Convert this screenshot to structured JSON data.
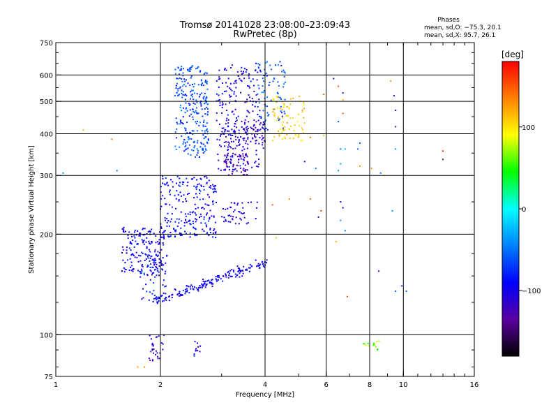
{
  "title": "Tromsø 20141028 23:08:00–23:09:43",
  "subtitle": "RwPretec (8p)",
  "stats": {
    "heading": "Phases",
    "o_line": "mean, sd,O: −75.3, 20.1",
    "x_line": "mean, sd,X:  95.7, 26.1"
  },
  "colorbar": {
    "label": "[deg]",
    "range": [
      -180,
      180
    ],
    "ticks": [
      {
        "value": 100,
        "label": "100"
      },
      {
        "value": 0,
        "label": "0"
      },
      {
        "value": -100,
        "label": "−100"
      }
    ],
    "colors": [
      "#000000",
      "#5a00a0",
      "#0000ff",
      "#0080ff",
      "#00ffff",
      "#00ff00",
      "#ffff00",
      "#ff8000",
      "#ff0000"
    ]
  },
  "chart_data": {
    "type": "scatter",
    "xlabel": "Frequency [MHz]",
    "ylabel": "Stationary phase Virtual Height [km]",
    "xscale": "log",
    "yscale": "log",
    "xlim": [
      1,
      16
    ],
    "ylim": [
      75,
      750
    ],
    "grid": true,
    "x_ticks": [
      {
        "value": 1,
        "label": "1"
      },
      {
        "value": 2,
        "label": "2"
      },
      {
        "value": 4,
        "label": "4"
      },
      {
        "value": 6,
        "label": "6"
      },
      {
        "value": 8,
        "label": "8"
      },
      {
        "value": 10,
        "label": "10"
      },
      {
        "value": 16,
        "label": "16"
      }
    ],
    "y_ticks": [
      {
        "value": 75,
        "label": "75"
      },
      {
        "value": 100,
        "label": "100"
      },
      {
        "value": 200,
        "label": "200"
      },
      {
        "value": 300,
        "label": "300"
      },
      {
        "value": 400,
        "label": "400"
      },
      {
        "value": 500,
        "label": "500"
      },
      {
        "value": 600,
        "label": "600"
      },
      {
        "value": 750,
        "label": "750"
      }
    ],
    "x_gridlines": [
      2,
      4,
      6,
      8,
      10
    ],
    "y_gridlines": [
      100,
      200,
      300,
      400,
      500,
      600
    ],
    "clusters": [
      {
        "f": [
          1.55,
          2.05
        ],
        "h": [
          150,
          210
        ],
        "phase": -95,
        "count": 180
      },
      {
        "f": [
          1.75,
          2.1
        ],
        "h": [
          125,
          175
        ],
        "phase": -80,
        "count": 60
      },
      {
        "f": [
          2.0,
          2.9
        ],
        "h": [
          195,
          300
        ],
        "phase": -90,
        "count": 230
      },
      {
        "f": [
          2.2,
          2.75
        ],
        "h": [
          340,
          640
        ],
        "phase": -65,
        "count": 260
      },
      {
        "f": [
          2.9,
          3.9
        ],
        "h": [
          310,
          650
        ],
        "phase": -100,
        "count": 210
      },
      {
        "f": [
          3.0,
          4.0
        ],
        "h": [
          360,
          440
        ],
        "phase": -115,
        "count": 90
      },
      {
        "f": [
          3.05,
          3.6
        ],
        "h": [
          300,
          350
        ],
        "phase": -125,
        "count": 60
      },
      {
        "f": [
          3.0,
          3.8
        ],
        "h": [
          215,
          250
        ],
        "phase": -105,
        "count": 45
      },
      {
        "f": [
          3.8,
          4.6
        ],
        "h": [
          410,
          660
        ],
        "phase": -60,
        "count": 80
      },
      {
        "f": [
          4.2,
          5.2
        ],
        "h": [
          380,
          520
        ],
        "phase": 105,
        "count": 80
      },
      {
        "f": [
          1.85,
          2.05
        ],
        "h": [
          83,
          100
        ],
        "phase": -110,
        "count": 30
      },
      {
        "f": [
          2.5,
          2.62
        ],
        "h": [
          85,
          97
        ],
        "phase": -105,
        "count": 12
      },
      {
        "f": [
          7.6,
          8.6
        ],
        "h": [
          90,
          96
        ],
        "phase": 65,
        "count": 14
      }
    ],
    "band": {
      "f": [
        1.9,
        4.05
      ],
      "h": [
        125,
        165
      ],
      "phase": -95,
      "count": 170
    },
    "scatter": [
      {
        "f": 1.2,
        "h": 410,
        "phase": 120
      },
      {
        "f": 1.45,
        "h": 385,
        "phase": 140
      },
      {
        "f": 1.05,
        "h": 305,
        "phase": -40
      },
      {
        "f": 1.5,
        "h": 310,
        "phase": -50
      },
      {
        "f": 1.55,
        "h": 155,
        "phase": -110
      },
      {
        "f": 1.72,
        "h": 80,
        "phase": 120
      },
      {
        "f": 1.8,
        "h": 80,
        "phase": 130
      },
      {
        "f": 5.0,
        "h": 395,
        "phase": 100
      },
      {
        "f": 5.4,
        "h": 390,
        "phase": 140
      },
      {
        "f": 5.2,
        "h": 330,
        "phase": -100
      },
      {
        "f": 5.6,
        "h": 315,
        "phase": -50
      },
      {
        "f": 4.7,
        "h": 255,
        "phase": 130
      },
      {
        "f": 5.4,
        "h": 255,
        "phase": 140
      },
      {
        "f": 5.8,
        "h": 235,
        "phase": 160
      },
      {
        "f": 5.7,
        "h": 225,
        "phase": -120
      },
      {
        "f": 4.3,
        "h": 195,
        "phase": 110
      },
      {
        "f": 4.2,
        "h": 245,
        "phase": 150
      },
      {
        "f": 5.9,
        "h": 525,
        "phase": 140
      },
      {
        "f": 5.9,
        "h": 395,
        "phase": 110
      },
      {
        "f": 6.3,
        "h": 585,
        "phase": -110
      },
      {
        "f": 6.5,
        "h": 555,
        "phase": 150
      },
      {
        "f": 6.7,
        "h": 530,
        "phase": -120
      },
      {
        "f": 6.7,
        "h": 505,
        "phase": 120
      },
      {
        "f": 6.7,
        "h": 460,
        "phase": 150
      },
      {
        "f": 6.5,
        "h": 435,
        "phase": -60
      },
      {
        "f": 6.6,
        "h": 360,
        "phase": -50
      },
      {
        "f": 6.8,
        "h": 360,
        "phase": -20
      },
      {
        "f": 6.6,
        "h": 325,
        "phase": -30
      },
      {
        "f": 6.5,
        "h": 310,
        "phase": -40
      },
      {
        "f": 6.6,
        "h": 250,
        "phase": -100
      },
      {
        "f": 6.7,
        "h": 240,
        "phase": -90
      },
      {
        "f": 6.6,
        "h": 220,
        "phase": -30
      },
      {
        "f": 6.8,
        "h": 205,
        "phase": -40
      },
      {
        "f": 6.4,
        "h": 190,
        "phase": 120
      },
      {
        "f": 6.9,
        "h": 130,
        "phase": 150
      },
      {
        "f": 7.5,
        "h": 320,
        "phase": 130
      },
      {
        "f": 7.4,
        "h": 360,
        "phase": -50
      },
      {
        "f": 8.1,
        "h": 315,
        "phase": 130
      },
      {
        "f": 8.6,
        "h": 305,
        "phase": -50
      },
      {
        "f": 8.8,
        "h": 300,
        "phase": 100
      },
      {
        "f": 8.5,
        "h": 155,
        "phase": -140
      },
      {
        "f": 9.2,
        "h": 575,
        "phase": 130
      },
      {
        "f": 9.4,
        "h": 520,
        "phase": -80
      },
      {
        "f": 9.5,
        "h": 470,
        "phase": -110
      },
      {
        "f": 9.5,
        "h": 420,
        "phase": -130
      },
      {
        "f": 9.5,
        "h": 360,
        "phase": -40
      },
      {
        "f": 9.3,
        "h": 235,
        "phase": -40
      },
      {
        "f": 9.5,
        "h": 135,
        "phase": -60
      },
      {
        "f": 10.2,
        "h": 135,
        "phase": -55
      },
      {
        "f": 9.9,
        "h": 140,
        "phase": -70
      },
      {
        "f": 13.0,
        "h": 355,
        "phase": 170
      },
      {
        "f": 13.0,
        "h": 335,
        "phase": -125
      },
      {
        "f": 7.5,
        "h": 375,
        "phase": -60
      }
    ]
  }
}
